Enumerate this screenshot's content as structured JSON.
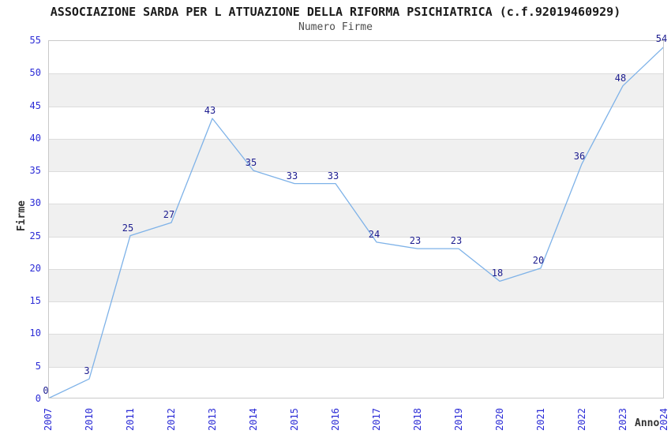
{
  "page": {
    "background": "#FFFFFF"
  },
  "header": {
    "title": "ASSOCIAZIONE SARDA PER L ATTUAZIONE DELLA RIFORMA PSICHIATRICA (c.f.92019460929)",
    "subtitle": "Numero Firme"
  },
  "chart_data": {
    "type": "line",
    "title": "ASSOCIAZIONE SARDA PER L ATTUAZIONE DELLA RIFORMA PSICHIATRICA (c.f.92019460929)",
    "subtitle": "Numero Firme",
    "xlabel": "Anno",
    "ylabel": "Firme",
    "x": [
      "2007",
      "2010",
      "2011",
      "2012",
      "2013",
      "2014",
      "2015",
      "2016",
      "2017",
      "2018",
      "2019",
      "2020",
      "2021",
      "2022",
      "2023",
      "2024"
    ],
    "series": [
      {
        "name": "Numero Firme",
        "values": [
          0,
          3,
          25,
          27,
          43,
          35,
          33,
          33,
          24,
          23,
          23,
          18,
          20,
          36,
          48,
          54
        ]
      }
    ],
    "ylim": [
      0,
      55
    ],
    "ytick_step": 5,
    "yticks": [
      0,
      5,
      10,
      15,
      20,
      25,
      30,
      35,
      40,
      45,
      50,
      55
    ],
    "grid": "horizontal alternating gray bands every 5 units",
    "legend": "none",
    "point_labels_shown": true,
    "colors": {
      "line": "#7EB2E8",
      "tick_label": "#2B2BD6",
      "point_label": "#1C1C8F",
      "band": "#F0F0F0",
      "grid_line": "#DCDCDC",
      "plot_border": "#C9C9C9",
      "title": "#1A1A1A",
      "subtitle": "#4D4D4D",
      "axis_title": "#333333"
    }
  }
}
